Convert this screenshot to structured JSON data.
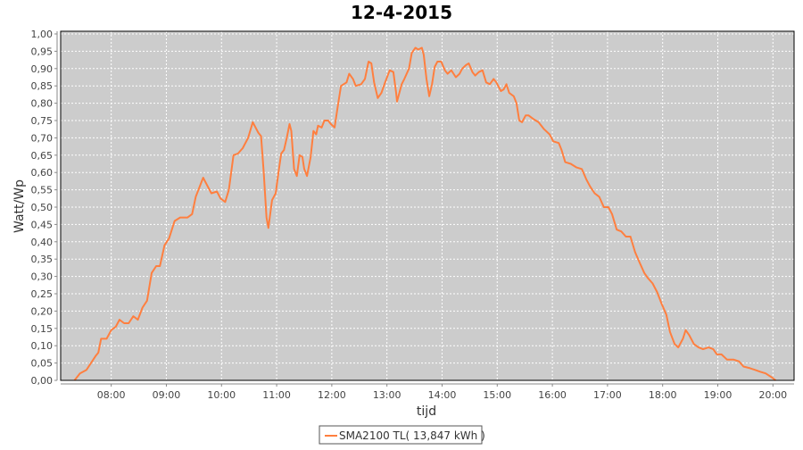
{
  "chart_data": {
    "type": "line",
    "title": "12-4-2015",
    "xlabel": "tijd",
    "ylabel": "Watt/Wp",
    "xlim": [
      "07:05",
      "20:23"
    ],
    "ylim": [
      0,
      1
    ],
    "x_ticks": [
      "08:00",
      "09:00",
      "10:00",
      "11:00",
      "12:00",
      "13:00",
      "14:00",
      "15:00",
      "16:00",
      "17:00",
      "18:00",
      "19:00",
      "20:00"
    ],
    "y_ticks": [
      "0,00",
      "0,05",
      "0,10",
      "0,15",
      "0,20",
      "0,25",
      "0,30",
      "0,35",
      "0,40",
      "0,45",
      "0,50",
      "0,55",
      "0,60",
      "0,65",
      "0,70",
      "0,75",
      "0,80",
      "0,85",
      "0,90",
      "0,95",
      "1,00"
    ],
    "grid": true,
    "legend_position": "bottom",
    "background_color": "#cccccc",
    "series": [
      {
        "name": "SMA2100 TL( 13,847 kWh )",
        "color": "#ff7f3f",
        "x": [
          "07:20",
          "07:26",
          "07:33",
          "07:38",
          "07:43",
          "07:46",
          "07:49",
          "07:55",
          "08:00",
          "08:05",
          "08:09",
          "08:14",
          "08:19",
          "08:24",
          "08:29",
          "08:34",
          "08:39",
          "08:44",
          "08:49",
          "08:53",
          "08:58",
          "09:03",
          "09:09",
          "09:15",
          "09:23",
          "09:28",
          "09:32",
          "09:40",
          "09:44",
          "09:49",
          "09:55",
          "09:59",
          "10:04",
          "10:08",
          "10:13",
          "10:18",
          "10:23",
          "10:29",
          "10:34",
          "10:40",
          "10:43",
          "10:46",
          "10:49",
          "10:51",
          "10:55",
          "10:59",
          "11:02",
          "11:05",
          "11:08",
          "11:11",
          "11:14",
          "11:16",
          "11:19",
          "11:22",
          "11:25",
          "11:28",
          "11:30",
          "11:33",
          "11:37",
          "11:40",
          "11:43",
          "11:45",
          "11:49",
          "11:52",
          "11:56",
          "11:59",
          "12:03",
          "12:07",
          "12:10",
          "12:16",
          "12:19",
          "12:23",
          "12:26",
          "12:32",
          "12:36",
          "12:40",
          "12:43",
          "12:46",
          "12:50",
          "12:54",
          "12:58",
          "13:03",
          "13:07",
          "13:10",
          "13:11",
          "13:16",
          "13:19",
          "13:24",
          "13:27",
          "13:31",
          "13:34",
          "13:38",
          "13:40",
          "13:43",
          "13:46",
          "13:49",
          "13:52",
          "13:55",
          "13:59",
          "14:03",
          "14:06",
          "14:10",
          "14:15",
          "14:19",
          "14:22",
          "14:26",
          "14:29",
          "14:33",
          "14:36",
          "14:40",
          "14:44",
          "14:48",
          "14:52",
          "14:56",
          "14:59",
          "15:04",
          "15:07",
          "15:10",
          "15:13",
          "15:18",
          "15:21",
          "15:24",
          "15:27",
          "15:31",
          "15:34",
          "15:39",
          "15:45",
          "15:51",
          "15:57",
          "16:01",
          "16:07",
          "16:10",
          "16:14",
          "16:20",
          "16:26",
          "16:32",
          "16:37",
          "16:41",
          "16:46",
          "16:51",
          "16:56",
          "17:01",
          "17:05",
          "17:10",
          "17:15",
          "17:20",
          "17:25",
          "17:30",
          "17:35",
          "17:40",
          "17:44",
          "17:49",
          "17:54",
          "17:59",
          "18:04",
          "18:08",
          "18:13",
          "18:17",
          "18:22",
          "18:25",
          "18:29",
          "18:34",
          "18:39",
          "18:44",
          "18:50",
          "18:55",
          "18:59",
          "19:04",
          "19:10",
          "19:17",
          "19:23",
          "19:28",
          "19:35",
          "19:41",
          "19:46",
          "19:52",
          "19:58",
          "20:03"
        ],
        "y": [
          0.0,
          0.02,
          0.03,
          0.05,
          0.07,
          0.08,
          0.12,
          0.12,
          0.145,
          0.155,
          0.175,
          0.165,
          0.165,
          0.185,
          0.175,
          0.21,
          0.23,
          0.31,
          0.33,
          0.33,
          0.39,
          0.41,
          0.46,
          0.47,
          0.47,
          0.48,
          0.53,
          0.585,
          0.565,
          0.54,
          0.545,
          0.525,
          0.515,
          0.55,
          0.65,
          0.655,
          0.67,
          0.7,
          0.745,
          0.715,
          0.705,
          0.6,
          0.47,
          0.44,
          0.52,
          0.54,
          0.6,
          0.655,
          0.665,
          0.7,
          0.74,
          0.72,
          0.61,
          0.59,
          0.65,
          0.645,
          0.61,
          0.59,
          0.645,
          0.72,
          0.71,
          0.735,
          0.73,
          0.75,
          0.75,
          0.74,
          0.73,
          0.8,
          0.85,
          0.86,
          0.885,
          0.87,
          0.85,
          0.855,
          0.87,
          0.92,
          0.915,
          0.86,
          0.815,
          0.83,
          0.86,
          0.895,
          0.89,
          0.83,
          0.805,
          0.855,
          0.87,
          0.9,
          0.945,
          0.96,
          0.955,
          0.96,
          0.94,
          0.87,
          0.82,
          0.855,
          0.905,
          0.92,
          0.92,
          0.895,
          0.885,
          0.895,
          0.875,
          0.885,
          0.9,
          0.91,
          0.915,
          0.89,
          0.88,
          0.89,
          0.895,
          0.86,
          0.855,
          0.87,
          0.86,
          0.835,
          0.84,
          0.855,
          0.83,
          0.82,
          0.8,
          0.75,
          0.745,
          0.765,
          0.765,
          0.755,
          0.745,
          0.725,
          0.71,
          0.69,
          0.685,
          0.665,
          0.63,
          0.625,
          0.615,
          0.61,
          0.58,
          0.56,
          0.54,
          0.53,
          0.5,
          0.5,
          0.48,
          0.435,
          0.43,
          0.415,
          0.415,
          0.37,
          0.34,
          0.31,
          0.295,
          0.28,
          0.255,
          0.22,
          0.19,
          0.14,
          0.105,
          0.095,
          0.12,
          0.145,
          0.13,
          0.105,
          0.095,
          0.09,
          0.095,
          0.09,
          0.075,
          0.075,
          0.06,
          0.06,
          0.055,
          0.04,
          0.035,
          0.03,
          0.025,
          0.02,
          0.01,
          0.0
        ]
      }
    ]
  }
}
